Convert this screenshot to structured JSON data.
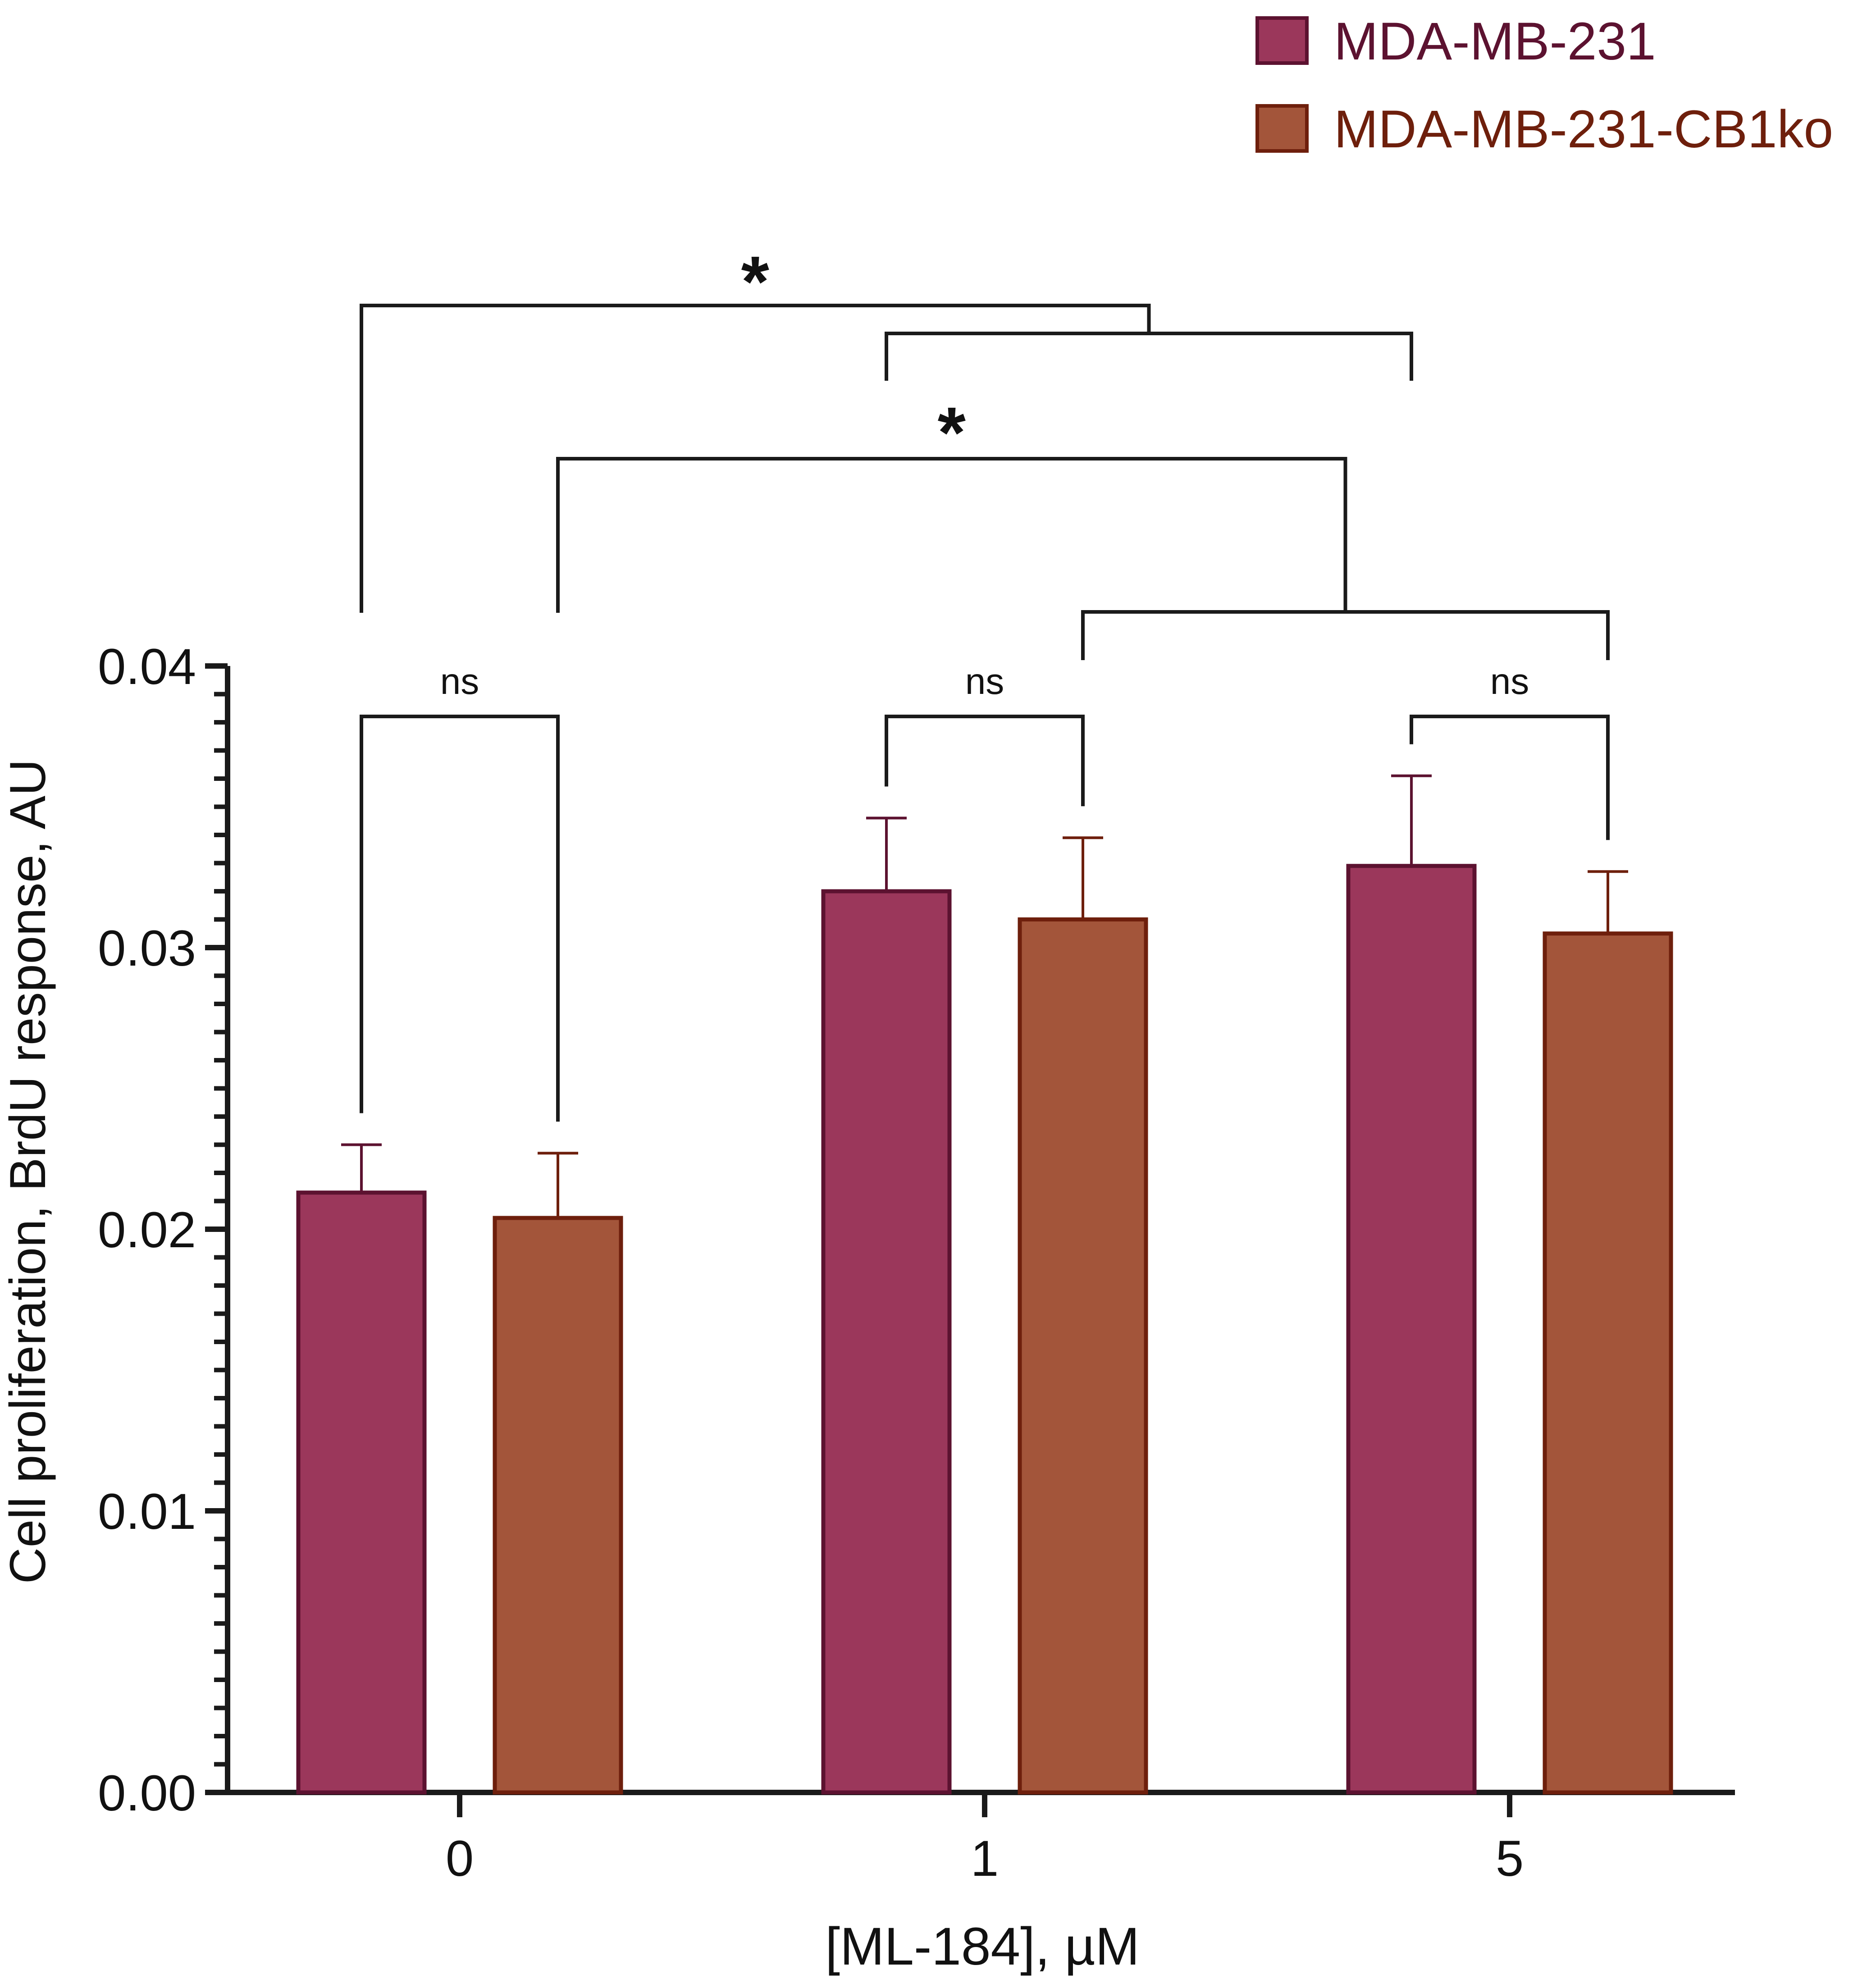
{
  "chart_data": {
    "type": "bar",
    "title": "",
    "xlabel": "[ML-184], µM",
    "ylabel": "Cell proliferation, BrdU response, AU",
    "categories": [
      "0",
      "1",
      "5"
    ],
    "ylim": [
      0,
      0.04
    ],
    "yticks": [
      "0.00",
      "0.01",
      "0.02",
      "0.03",
      "0.04"
    ],
    "series": [
      {
        "name": "MDA-MB-231",
        "values": [
          0.0213,
          0.032,
          0.0329
        ],
        "errors": [
          0.0017,
          0.0026,
          0.0032
        ],
        "color": "#9B375B",
        "edge": "#5C1230",
        "legend_text_color": "#5C1230"
      },
      {
        "name": "MDA-MB-231-CB1ko",
        "values": [
          0.0204,
          0.031,
          0.0305
        ],
        "errors": [
          0.0023,
          0.0029,
          0.0022
        ],
        "color": "#A3553A",
        "edge": "#6E1F0C",
        "legend_text_color": "#6E1F0C"
      }
    ],
    "legend_position": "top-right",
    "annotations": {
      "within_group": [
        "ns",
        "ns",
        "ns"
      ],
      "across_groups": [
        "*",
        "*"
      ]
    }
  }
}
